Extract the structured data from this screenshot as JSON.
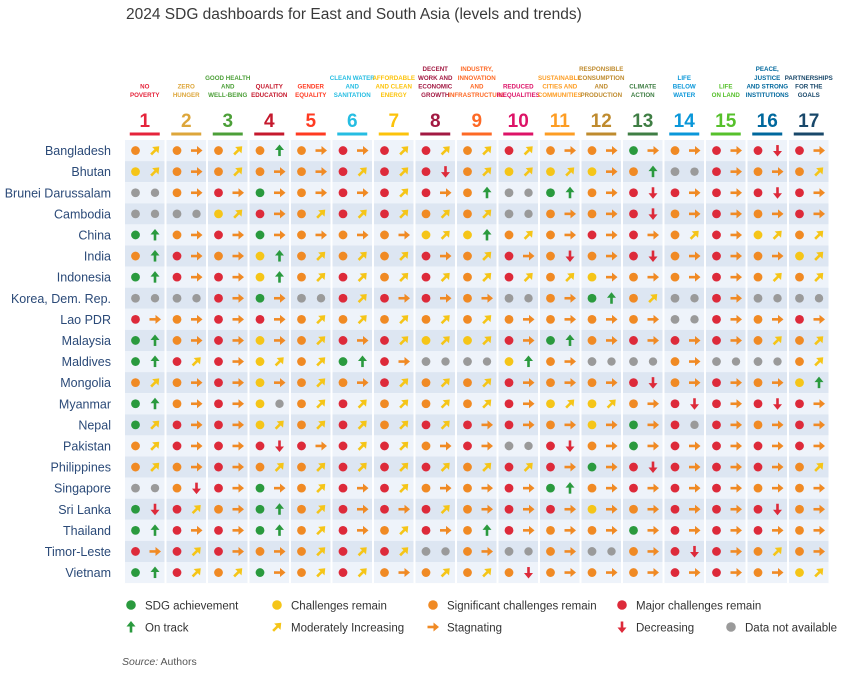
{
  "title": "2024 SDG dashboards for East and South Asia (levels and trends)",
  "source": {
    "label": "Source:",
    "text": "Authors"
  },
  "colors": {
    "green": "#2a9a3e",
    "yellow": "#f5c518",
    "orange": "#f08a24",
    "red": "#dd2a3a",
    "grey": "#9a9a9a",
    "row_a": "#eef3fa",
    "row_b": "#dde6f2",
    "divider": "#ffffff",
    "country_text": "#2b4a78"
  },
  "chart_data": {
    "type": "table",
    "title": "2024 SDG dashboards for East and South Asia (levels and trends)",
    "goals": [
      {
        "number": "1",
        "label": [
          "NO",
          "POVERTY"
        ],
        "color": "#e5243b"
      },
      {
        "number": "2",
        "label": [
          "ZERO",
          "HUNGER"
        ],
        "color": "#dda63a"
      },
      {
        "number": "3",
        "label": [
          "GOOD HEALTH",
          "AND",
          "WELL-BEING"
        ],
        "color": "#4c9f38"
      },
      {
        "number": "4",
        "label": [
          "QUALITY",
          "EDUCATION"
        ],
        "color": "#c5192d"
      },
      {
        "number": "5",
        "label": [
          "GENDER",
          "EQUALITY"
        ],
        "color": "#ff3a21"
      },
      {
        "number": "6",
        "label": [
          "CLEAN WATER",
          "AND",
          "SANITATION"
        ],
        "color": "#26bde2"
      },
      {
        "number": "7",
        "label": [
          "AFFORDABLE",
          "AND CLEAN",
          "ENERGY"
        ],
        "color": "#fcc30b"
      },
      {
        "number": "8",
        "label": [
          "DECENT",
          "WORK AND",
          "ECONOMIC",
          "GROWTH"
        ],
        "color": "#a21942"
      },
      {
        "number": "9",
        "label": [
          "INDUSTRY,",
          "INNOVATION",
          "AND",
          "INFRASTRUCTURE"
        ],
        "color": "#fd6925"
      },
      {
        "number": "10",
        "label": [
          "REDUCED",
          "INEQUALITIES"
        ],
        "color": "#dd1367"
      },
      {
        "number": "11",
        "label": [
          "SUSTAINABLE",
          "CITIES AND",
          "COMMUNITIES"
        ],
        "color": "#fd9d24"
      },
      {
        "number": "12",
        "label": [
          "RESPONSIBLE",
          "CONSUMPTION",
          "AND",
          "PRODUCTION"
        ],
        "color": "#bf8b2e"
      },
      {
        "number": "13",
        "label": [
          "CLIMATE",
          "ACTION"
        ],
        "color": "#3f7e44"
      },
      {
        "number": "14",
        "label": [
          "LIFE",
          "BELOW",
          "WATER"
        ],
        "color": "#0a97d9"
      },
      {
        "number": "15",
        "label": [
          "LIFE",
          "ON LAND"
        ],
        "color": "#56c02b"
      },
      {
        "number": "16",
        "label": [
          "PEACE,",
          "JUSTICE",
          "AND STRONG",
          "INSTITUTIONS"
        ],
        "color": "#00689d"
      },
      {
        "number": "17",
        "label": [
          "PARTNERSHIPS",
          "FOR THE",
          "GOALS"
        ],
        "color": "#19486a"
      }
    ],
    "countries": [
      "Bangladesh",
      "Bhutan",
      "Brunei Darussalam",
      "Cambodia",
      "China",
      "India",
      "Indonesia",
      "Korea, Dem. Rep.",
      "Lao PDR",
      "Malaysia",
      "Maldives",
      "Mongolia",
      "Myanmar",
      "Nepal",
      "Pakistan",
      "Philippines",
      "Singapore",
      "Sri Lanka",
      "Thailand",
      "Timor-Leste",
      "Vietnam"
    ],
    "level_codes": {
      "G": "SDG achievement",
      "Y": "Challenges remain",
      "O": "Significant challenges remain",
      "R": "Major challenges remain",
      "N": "Data not available"
    },
    "trend_codes": {
      "u": "On track",
      "m": "Moderately Increasing",
      "s": "Stagnating",
      "d": "Decreasing",
      "n": "Data not available"
    },
    "cells": [
      [
        "Om",
        "Os",
        "Om",
        "Ou",
        "Os",
        "Rs",
        "Rm",
        "Rm",
        "Om",
        "Rm",
        "Os",
        "Os",
        "Gs",
        "Os",
        "Rs",
        "Rd",
        "Rs"
      ],
      [
        "Ym",
        "Os",
        "Om",
        "Os",
        "Os",
        "Rm",
        "Rm",
        "Rd",
        "Om",
        "Ym",
        "Ym",
        "Ys",
        "Ou",
        "Nn",
        "Rs",
        "Os",
        "Om"
      ],
      [
        "Nn",
        "Os",
        "Rs",
        "Gs",
        "Os",
        "Rs",
        "Rm",
        "Rs",
        "Ou",
        "Nn",
        "Gu",
        "Os",
        "Rd",
        "Rs",
        "Rs",
        "Rd",
        "Rs"
      ],
      [
        "Nn",
        "Nn",
        "Ym",
        "Rs",
        "Om",
        "Rm",
        "Rm",
        "Om",
        "Om",
        "Nn",
        "Os",
        "Os",
        "Rd",
        "Os",
        "Rs",
        "Os",
        "Rs"
      ],
      [
        "Gu",
        "Os",
        "Rs",
        "Gs",
        "Os",
        "Os",
        "Os",
        "Ym",
        "Yu",
        "Om",
        "Os",
        "Rs",
        "Rs",
        "Om",
        "Rs",
        "Ym",
        "Om"
      ],
      [
        "Ou",
        "Rs",
        "Os",
        "Yu",
        "Om",
        "Om",
        "Om",
        "Rs",
        "Om",
        "Rs",
        "Od",
        "Os",
        "Rd",
        "Os",
        "Rs",
        "Os",
        "Ym"
      ],
      [
        "Gu",
        "Rs",
        "Rs",
        "Yu",
        "Om",
        "Rm",
        "Om",
        "Rm",
        "Om",
        "Rm",
        "Om",
        "Ys",
        "Os",
        "Os",
        "Rs",
        "Om",
        "Om"
      ],
      [
        "Nn",
        "Nn",
        "Rs",
        "Gs",
        "Nn",
        "Rm",
        "Rs",
        "Rs",
        "Os",
        "Nn",
        "Os",
        "Gu",
        "Om",
        "Nn",
        "Rs",
        "Nn",
        "Nn"
      ],
      [
        "Rs",
        "Os",
        "Rs",
        "Rs",
        "Om",
        "Om",
        "Om",
        "Om",
        "Om",
        "Os",
        "Os",
        "Os",
        "Os",
        "Nn",
        "Rs",
        "Os",
        "Rs"
      ],
      [
        "Gu",
        "Os",
        "Rs",
        "Ys",
        "Om",
        "Rs",
        "Rm",
        "Ym",
        "Ym",
        "Rs",
        "Gu",
        "Os",
        "Rs",
        "Rs",
        "Rs",
        "Om",
        "Om"
      ],
      [
        "Gu",
        "Rm",
        "Rs",
        "Ym",
        "Om",
        "Gu",
        "Rs",
        "Nn",
        "Nn",
        "Yu",
        "Os",
        "Nn",
        "Nn",
        "Os",
        "Nn",
        "Nn",
        "Om"
      ],
      [
        "Om",
        "Os",
        "Rs",
        "Ys",
        "Om",
        "Os",
        "Rm",
        "Om",
        "Om",
        "Rs",
        "Os",
        "Os",
        "Rd",
        "Os",
        "Rs",
        "Os",
        "Yu"
      ],
      [
        "Gu",
        "Os",
        "Rs",
        "Yn",
        "Om",
        "Rm",
        "Om",
        "Om",
        "Om",
        "Rs",
        "Ym",
        "Ym",
        "Os",
        "Rd",
        "Rs",
        "Rd",
        "Rs"
      ],
      [
        "Gm",
        "Rs",
        "Rs",
        "Ym",
        "Om",
        "Rm",
        "Om",
        "Rm",
        "Rs",
        "Rs",
        "Os",
        "Ys",
        "Gs",
        "Rn",
        "Rs",
        "Os",
        "Rs"
      ],
      [
        "Om",
        "Rs",
        "Rs",
        "Rd",
        "Rs",
        "Rm",
        "Rm",
        "Os",
        "Rs",
        "Nn",
        "Rd",
        "Os",
        "Gs",
        "Rs",
        "Rs",
        "Rs",
        "Rs"
      ],
      [
        "Om",
        "Os",
        "Rs",
        "Om",
        "Om",
        "Rm",
        "Rm",
        "Rm",
        "Om",
        "Rm",
        "Rs",
        "Gs",
        "Rd",
        "Rs",
        "Rs",
        "Rs",
        "Om"
      ],
      [
        "Nn",
        "Od",
        "Rs",
        "Gs",
        "Om",
        "Rs",
        "Rm",
        "Os",
        "Os",
        "Rs",
        "Gu",
        "Os",
        "Rs",
        "Rs",
        "Rs",
        "Os",
        "Os"
      ],
      [
        "Gd",
        "Rm",
        "Os",
        "Gu",
        "Om",
        "Rs",
        "Rs",
        "Rm",
        "Os",
        "Rs",
        "Rs",
        "Ys",
        "Os",
        "Rs",
        "Rs",
        "Rd",
        "Os"
      ],
      [
        "Gu",
        "Rs",
        "Rs",
        "Gu",
        "Om",
        "Rs",
        "Om",
        "Rs",
        "Ou",
        "Rs",
        "Os",
        "Os",
        "Gs",
        "Rs",
        "Rs",
        "Rs",
        "Os"
      ],
      [
        "Rs",
        "Rm",
        "Rs",
        "Os",
        "Om",
        "Rm",
        "Rm",
        "Nn",
        "Os",
        "Nn",
        "Os",
        "Nn",
        "Os",
        "Rd",
        "Rs",
        "Om",
        "Os"
      ],
      [
        "Gu",
        "Rm",
        "Om",
        "Gs",
        "Om",
        "Rm",
        "Os",
        "Om",
        "Om",
        "Od",
        "Os",
        "Os",
        "Os",
        "Rs",
        "Rs",
        "Os",
        "Ym"
      ]
    ]
  },
  "legend": {
    "levels": [
      {
        "code": "G",
        "label": "SDG achievement"
      },
      {
        "code": "Y",
        "label": "Challenges remain"
      },
      {
        "code": "O",
        "label": "Significant challenges remain"
      },
      {
        "code": "R",
        "label": "Major challenges remain"
      }
    ],
    "trends": [
      {
        "code": "u",
        "label": "On track"
      },
      {
        "code": "m",
        "label": "Moderately Increasing"
      },
      {
        "code": "s",
        "label": "Stagnating"
      },
      {
        "code": "d",
        "label": "Decreasing"
      }
    ],
    "na": {
      "code": "N",
      "label": "Data not available"
    }
  }
}
